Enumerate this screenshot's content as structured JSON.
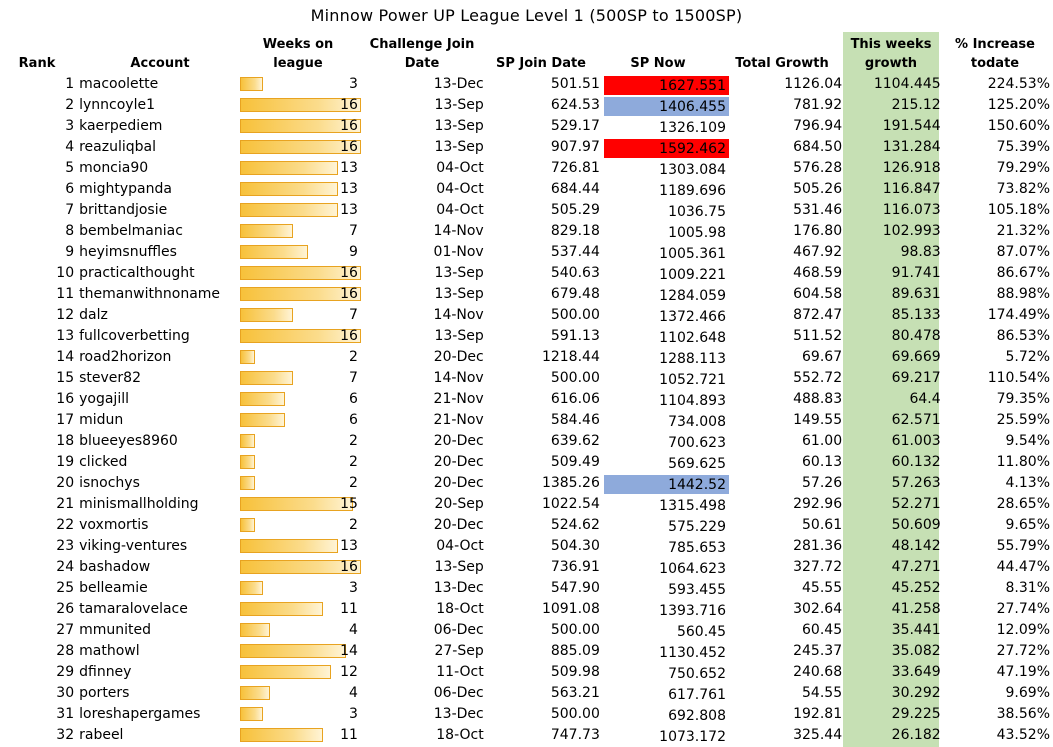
{
  "title": "Minnow Power UP League Level 1 (500SP to 1500SP)",
  "headers": {
    "rank": "Rank",
    "account": "Account",
    "weeks_l1": "Weeks on",
    "weeks_l2": "league",
    "join_l1": "Challenge Join",
    "join_l2": "Date",
    "sp_join": "SP Join Date",
    "sp_now": "SP Now",
    "total_growth": "Total Growth",
    "week_l1": "This weeks",
    "week_l2": "growth",
    "pct_l1": "% Increase",
    "pct_l2": "todate"
  },
  "colors": {
    "this_week_column": "#c6e0b4",
    "highlight_red": "#ff0000",
    "highlight_blue": "#8eaadb",
    "databar": "#f7c13a"
  },
  "max_weeks": 16,
  "rows": [
    {
      "rank": "1",
      "account": "macoolette",
      "weeks": "3",
      "join": "13-Dec",
      "sp_join": "501.51",
      "sp_now": "1627.551",
      "sp_now_hl": "red",
      "total": "1126.04",
      "week": "1104.445",
      "pct": "224.53%"
    },
    {
      "rank": "2",
      "account": "lynncoyle1",
      "weeks": "16",
      "join": "13-Sep",
      "sp_join": "624.53",
      "sp_now": "1406.455",
      "sp_now_hl": "blue",
      "total": "781.92",
      "week": "215.12",
      "pct": "125.20%"
    },
    {
      "rank": "3",
      "account": "kaerpediem",
      "weeks": "16",
      "join": "13-Sep",
      "sp_join": "529.17",
      "sp_now": "1326.109",
      "sp_now_hl": "",
      "total": "796.94",
      "week": "191.544",
      "pct": "150.60%"
    },
    {
      "rank": "4",
      "account": "reazuliqbal",
      "weeks": "16",
      "join": "13-Sep",
      "sp_join": "907.97",
      "sp_now": "1592.462",
      "sp_now_hl": "red",
      "total": "684.50",
      "week": "131.284",
      "pct": "75.39%"
    },
    {
      "rank": "5",
      "account": "moncia90",
      "weeks": "13",
      "join": "04-Oct",
      "sp_join": "726.81",
      "sp_now": "1303.084",
      "sp_now_hl": "",
      "total": "576.28",
      "week": "126.918",
      "pct": "79.29%"
    },
    {
      "rank": "6",
      "account": "mightypanda",
      "weeks": "13",
      "join": "04-Oct",
      "sp_join": "684.44",
      "sp_now": "1189.696",
      "sp_now_hl": "",
      "total": "505.26",
      "week": "116.847",
      "pct": "73.82%"
    },
    {
      "rank": "7",
      "account": "brittandjosie",
      "weeks": "13",
      "join": "04-Oct",
      "sp_join": "505.29",
      "sp_now": "1036.75",
      "sp_now_hl": "",
      "total": "531.46",
      "week": "116.073",
      "pct": "105.18%"
    },
    {
      "rank": "8",
      "account": "bembelmaniac",
      "weeks": "7",
      "join": "14-Nov",
      "sp_join": "829.18",
      "sp_now": "1005.98",
      "sp_now_hl": "",
      "total": "176.80",
      "week": "102.993",
      "pct": "21.32%"
    },
    {
      "rank": "9",
      "account": "heyimsnuffles",
      "weeks": "9",
      "join": "01-Nov",
      "sp_join": "537.44",
      "sp_now": "1005.361",
      "sp_now_hl": "",
      "total": "467.92",
      "week": "98.83",
      "pct": "87.07%"
    },
    {
      "rank": "10",
      "account": "practicalthought",
      "weeks": "16",
      "join": "13-Sep",
      "sp_join": "540.63",
      "sp_now": "1009.221",
      "sp_now_hl": "",
      "total": "468.59",
      "week": "91.741",
      "pct": "86.67%"
    },
    {
      "rank": "11",
      "account": "themanwithnoname",
      "weeks": "16",
      "join": "13-Sep",
      "sp_join": "679.48",
      "sp_now": "1284.059",
      "sp_now_hl": "",
      "total": "604.58",
      "week": "89.631",
      "pct": "88.98%"
    },
    {
      "rank": "12",
      "account": "dalz",
      "weeks": "7",
      "join": "14-Nov",
      "sp_join": "500.00",
      "sp_now": "1372.466",
      "sp_now_hl": "",
      "total": "872.47",
      "week": "85.133",
      "pct": "174.49%"
    },
    {
      "rank": "13",
      "account": "fullcoverbetting",
      "weeks": "16",
      "join": "13-Sep",
      "sp_join": "591.13",
      "sp_now": "1102.648",
      "sp_now_hl": "",
      "total": "511.52",
      "week": "80.478",
      "pct": "86.53%"
    },
    {
      "rank": "14",
      "account": "road2horizon",
      "weeks": "2",
      "join": "20-Dec",
      "sp_join": "1218.44",
      "sp_now": "1288.113",
      "sp_now_hl": "",
      "total": "69.67",
      "week": "69.669",
      "pct": "5.72%"
    },
    {
      "rank": "15",
      "account": "stever82",
      "weeks": "7",
      "join": "14-Nov",
      "sp_join": "500.00",
      "sp_now": "1052.721",
      "sp_now_hl": "",
      "total": "552.72",
      "week": "69.217",
      "pct": "110.54%"
    },
    {
      "rank": "16",
      "account": "yogajill",
      "weeks": "6",
      "join": "21-Nov",
      "sp_join": "616.06",
      "sp_now": "1104.893",
      "sp_now_hl": "",
      "total": "488.83",
      "week": "64.4",
      "pct": "79.35%"
    },
    {
      "rank": "17",
      "account": "midun",
      "weeks": "6",
      "join": "21-Nov",
      "sp_join": "584.46",
      "sp_now": "734.008",
      "sp_now_hl": "",
      "total": "149.55",
      "week": "62.571",
      "pct": "25.59%"
    },
    {
      "rank": "18",
      "account": "blueeyes8960",
      "weeks": "2",
      "join": "20-Dec",
      "sp_join": "639.62",
      "sp_now": "700.623",
      "sp_now_hl": "",
      "total": "61.00",
      "week": "61.003",
      "pct": "9.54%"
    },
    {
      "rank": "19",
      "account": "clicked",
      "weeks": "2",
      "join": "20-Dec",
      "sp_join": "509.49",
      "sp_now": "569.625",
      "sp_now_hl": "",
      "total": "60.13",
      "week": "60.132",
      "pct": "11.80%"
    },
    {
      "rank": "20",
      "account": "isnochys",
      "weeks": "2",
      "join": "20-Dec",
      "sp_join": "1385.26",
      "sp_now": "1442.52",
      "sp_now_hl": "blue",
      "total": "57.26",
      "week": "57.263",
      "pct": "4.13%"
    },
    {
      "rank": "21",
      "account": "minismallholding",
      "weeks": "15",
      "join": "20-Sep",
      "sp_join": "1022.54",
      "sp_now": "1315.498",
      "sp_now_hl": "",
      "total": "292.96",
      "week": "52.271",
      "pct": "28.65%"
    },
    {
      "rank": "22",
      "account": "voxmortis",
      "weeks": "2",
      "join": "20-Dec",
      "sp_join": "524.62",
      "sp_now": "575.229",
      "sp_now_hl": "",
      "total": "50.61",
      "week": "50.609",
      "pct": "9.65%"
    },
    {
      "rank": "23",
      "account": "viking-ventures",
      "weeks": "13",
      "join": "04-Oct",
      "sp_join": "504.30",
      "sp_now": "785.653",
      "sp_now_hl": "",
      "total": "281.36",
      "week": "48.142",
      "pct": "55.79%"
    },
    {
      "rank": "24",
      "account": "bashadow",
      "weeks": "16",
      "join": "13-Sep",
      "sp_join": "736.91",
      "sp_now": "1064.623",
      "sp_now_hl": "",
      "total": "327.72",
      "week": "47.271",
      "pct": "44.47%"
    },
    {
      "rank": "25",
      "account": "belleamie",
      "weeks": "3",
      "join": "13-Dec",
      "sp_join": "547.90",
      "sp_now": "593.455",
      "sp_now_hl": "",
      "total": "45.55",
      "week": "45.252",
      "pct": "8.31%"
    },
    {
      "rank": "26",
      "account": "tamaralovelace",
      "weeks": "11",
      "join": "18-Oct",
      "sp_join": "1091.08",
      "sp_now": "1393.716",
      "sp_now_hl": "",
      "total": "302.64",
      "week": "41.258",
      "pct": "27.74%"
    },
    {
      "rank": "27",
      "account": "mmunited",
      "weeks": "4",
      "join": "06-Dec",
      "sp_join": "500.00",
      "sp_now": "560.45",
      "sp_now_hl": "",
      "total": "60.45",
      "week": "35.441",
      "pct": "12.09%"
    },
    {
      "rank": "28",
      "account": "mathowl",
      "weeks": "14",
      "join": "27-Sep",
      "sp_join": "885.09",
      "sp_now": "1130.452",
      "sp_now_hl": "",
      "total": "245.37",
      "week": "35.082",
      "pct": "27.72%"
    },
    {
      "rank": "29",
      "account": "dfinney",
      "weeks": "12",
      "join": "11-Oct",
      "sp_join": "509.98",
      "sp_now": "750.652",
      "sp_now_hl": "",
      "total": "240.68",
      "week": "33.649",
      "pct": "47.19%"
    },
    {
      "rank": "30",
      "account": "porters",
      "weeks": "4",
      "join": "06-Dec",
      "sp_join": "563.21",
      "sp_now": "617.761",
      "sp_now_hl": "",
      "total": "54.55",
      "week": "30.292",
      "pct": "9.69%"
    },
    {
      "rank": "31",
      "account": "loreshapergames",
      "weeks": "3",
      "join": "13-Dec",
      "sp_join": "500.00",
      "sp_now": "692.808",
      "sp_now_hl": "",
      "total": "192.81",
      "week": "29.225",
      "pct": "38.56%"
    },
    {
      "rank": "32",
      "account": "rabeel",
      "weeks": "11",
      "join": "18-Oct",
      "sp_join": "747.73",
      "sp_now": "1073.172",
      "sp_now_hl": "",
      "total": "325.44",
      "week": "26.182",
      "pct": "43.52%"
    }
  ]
}
